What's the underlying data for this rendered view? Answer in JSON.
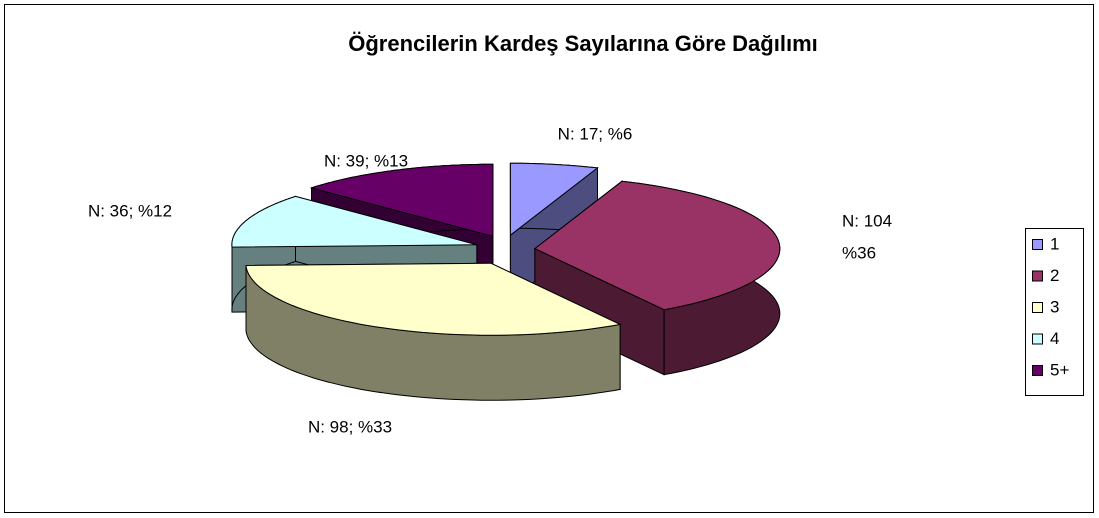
{
  "chart_data": {
    "type": "pie3d",
    "title": "Öğrencilerin Kardeş Sayılarına Göre Dağılımı",
    "categories": [
      "1",
      "2",
      "3",
      "4",
      "5+"
    ],
    "values": [
      17,
      104,
      98,
      36,
      39
    ],
    "value_labels": [
      "N: 17; %6",
      [
        "N: 104",
        "%36"
      ],
      "N: 98; %33",
      "N: 36; %12",
      "N: 39; %13"
    ],
    "colors": [
      "#9999ff",
      "#993366",
      "#ffffcc",
      "#ccffff",
      "#660066"
    ],
    "legend": "right"
  }
}
